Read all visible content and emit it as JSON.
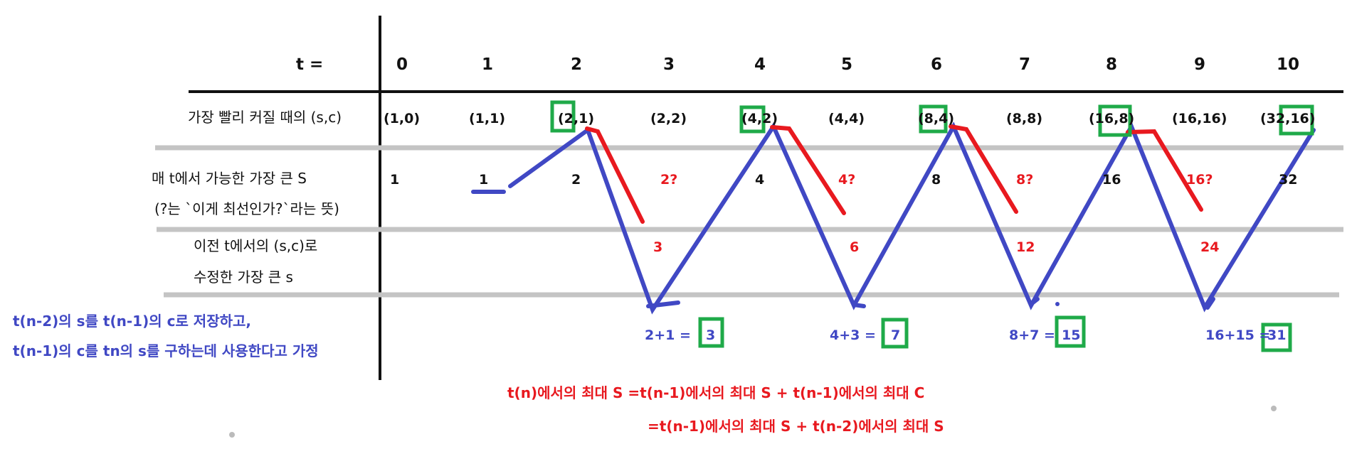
{
  "header": {
    "t_label": "t ="
  },
  "t_values": [
    "0",
    "1",
    "2",
    "3",
    "4",
    "5",
    "6",
    "7",
    "8",
    "9",
    "10"
  ],
  "rows": {
    "fastest": {
      "label": "가장 빨리 커질 때의 (s,c)",
      "values": [
        "(1,0)",
        "(1,1)",
        "(2,1)",
        "(2,2)",
        "(4,2)",
        "(4,4)",
        "(8,4)",
        "(8,8)",
        "(16,8)",
        "(16,16)",
        "(32,16)"
      ]
    },
    "max_s": {
      "label_line1": "매 t에서 가능한 가장 큰 S",
      "label_line2": "(?는 `이게 최선인가?`라는 뜻)",
      "values": [
        {
          "text": "1",
          "color": "black"
        },
        {
          "text": "1",
          "color": "black"
        },
        {
          "text": "2",
          "color": "black"
        },
        {
          "text": "2?",
          "color": "red"
        },
        {
          "text": "4",
          "color": "black"
        },
        {
          "text": "4?",
          "color": "red"
        },
        {
          "text": "8",
          "color": "black"
        },
        {
          "text": "8?",
          "color": "red"
        },
        {
          "text": "16",
          "color": "black"
        },
        {
          "text": "16?",
          "color": "red"
        },
        {
          "text": "32",
          "color": "black"
        }
      ]
    },
    "modified": {
      "label_line1": "이전 t에서의 (s,c)로",
      "label_line2": "수정한 가장 큰 s",
      "values": [
        "3",
        "6",
        "12",
        "24"
      ]
    },
    "sums": [
      {
        "expr": "2+1  =",
        "result": "3"
      },
      {
        "expr": "4+3  =",
        "result": "7"
      },
      {
        "expr": "8+7  =",
        "result": "15"
      },
      {
        "expr": "16+15  =",
        "result": "31"
      }
    ]
  },
  "assumption": {
    "line1": "t(n-2)의 s를 t(n-1)의 c로 저장하고,",
    "line2": "t(n-1)의 c를 tn의 s를 구하는데 사용한다고 가정"
  },
  "formula": {
    "line1": "t(n)에서의 최대 S  =t(n-1)에서의 최대 S + t(n-1)에서의 최대 C",
    "line2": "=t(n-1)에서의 최대 S + t(n-2)에서의 최대 S"
  },
  "colors": {
    "black": "#111111",
    "red": "#e8191f",
    "blue": "#4048c4",
    "green": "#1faa49",
    "gray": "#c4c4c4"
  }
}
